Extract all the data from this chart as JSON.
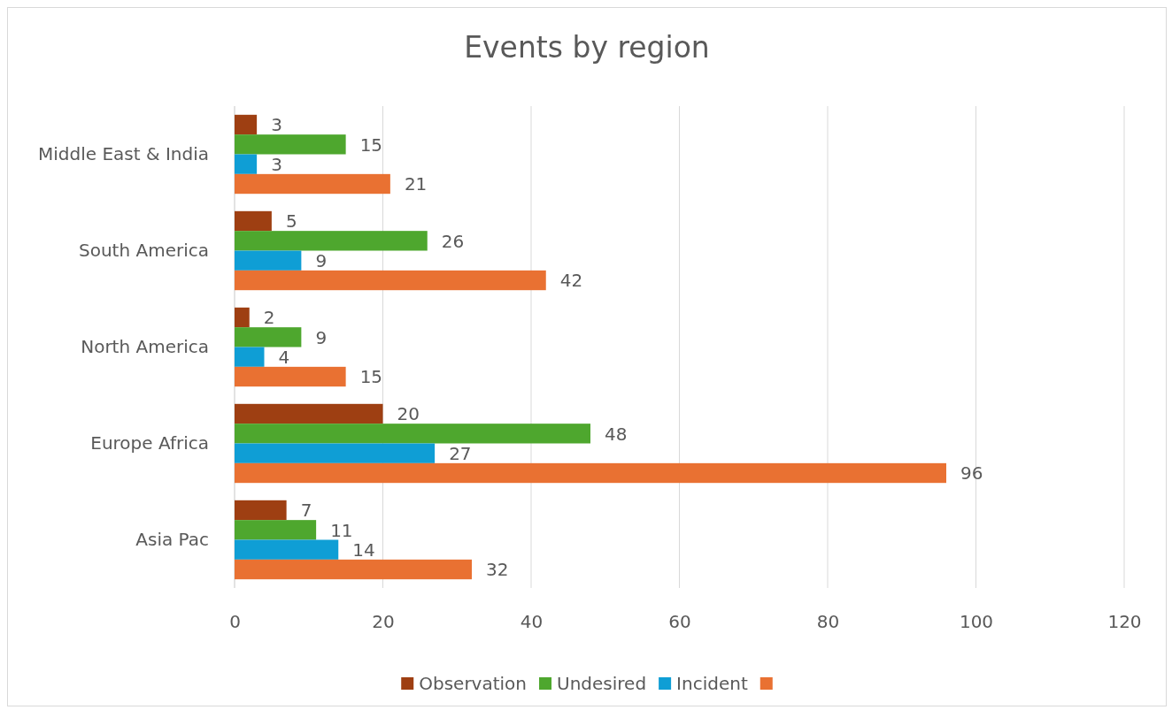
{
  "chart_data": {
    "type": "bar",
    "orientation": "horizontal",
    "title": "Events by region",
    "categories": [
      "Middle East & India",
      "South America",
      "North America",
      "Europe Africa",
      "Asia Pac"
    ],
    "series": [
      {
        "name": "Observation",
        "color": "#9e3f12",
        "values": [
          3,
          5,
          2,
          20,
          7
        ]
      },
      {
        "name": "Undesired",
        "color": "#4ea72e",
        "values": [
          15,
          26,
          9,
          48,
          11
        ]
      },
      {
        "name": "Incident",
        "color": "#0f9ed5",
        "values": [
          3,
          9,
          4,
          27,
          14
        ]
      },
      {
        "color": "#e97132",
        "values": [
          21,
          42,
          15,
          96,
          32
        ]
      }
    ],
    "xlim": [
      0,
      120
    ],
    "xticks": [
      0,
      20,
      40,
      60,
      80,
      100,
      120
    ],
    "grid": "x",
    "legend": "bottom",
    "data_labels": true
  }
}
